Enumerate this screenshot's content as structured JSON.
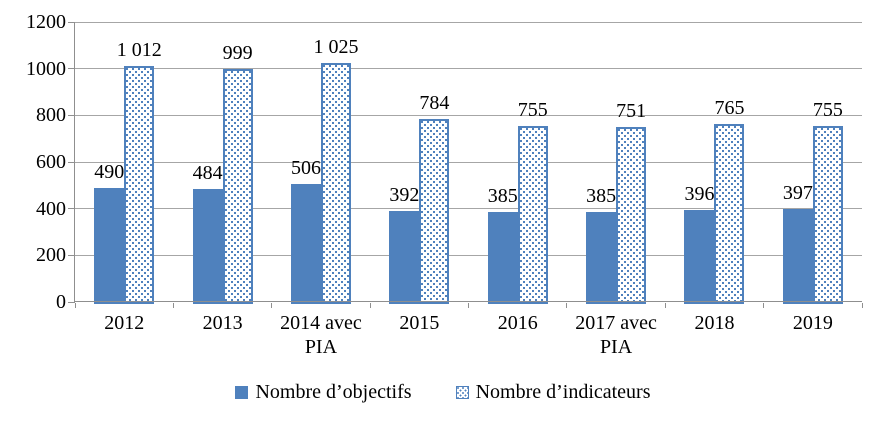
{
  "chart_data": {
    "type": "bar",
    "categories": [
      "2012",
      "2013",
      "2014 avec PIA",
      "2015",
      "2016",
      "2017 avec PIA",
      "2018",
      "2019"
    ],
    "category_lines": [
      [
        "2012"
      ],
      [
        "2013"
      ],
      [
        "2014 avec",
        "PIA"
      ],
      [
        "2015"
      ],
      [
        "2016"
      ],
      [
        "2017 avec",
        "PIA"
      ],
      [
        "2018"
      ],
      [
        "2019"
      ]
    ],
    "series": [
      {
        "name": "Nombre d’objectifs",
        "style": "solid",
        "values": [
          490,
          484,
          506,
          392,
          385,
          385,
          396,
          397
        ],
        "labels": [
          "490",
          "484",
          "506",
          "392",
          "385",
          "385",
          "396",
          "397"
        ]
      },
      {
        "name": "Nombre d’indicateurs",
        "style": "dotted",
        "values": [
          1012,
          999,
          1025,
          784,
          755,
          751,
          765,
          755
        ],
        "labels": [
          "1 012",
          "999",
          "1 025",
          "784",
          "755",
          "751",
          "765",
          "755"
        ]
      }
    ],
    "title": "",
    "xlabel": "",
    "ylabel": "",
    "ylim": [
      0,
      1200
    ],
    "yticks": [
      0,
      200,
      400,
      600,
      800,
      1000,
      1200
    ],
    "ytick_labels": [
      "0",
      "200",
      "400",
      "600",
      "800",
      "1000",
      "1200"
    ],
    "grid": true,
    "legend_position": "bottom",
    "colors": {
      "bar_fill": "#4f81bd",
      "bar_border": "#4f81bd",
      "pattern_background": "#ffffff",
      "gridline": "#a6a6a6",
      "axis": "#8f8f8f",
      "text": "#000000",
      "background": "#ffffff"
    }
  }
}
